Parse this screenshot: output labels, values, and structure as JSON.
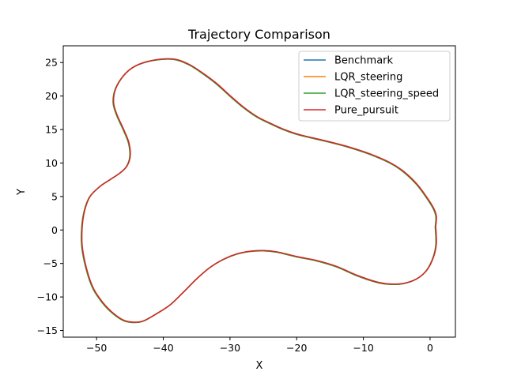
{
  "chart_data": {
    "type": "line",
    "title": "Trajectory Comparison",
    "xlabel": "X",
    "ylabel": "Y",
    "xlim": [
      -55,
      3.8
    ],
    "ylim": [
      -16,
      27.5
    ],
    "xticks": [
      -50,
      -40,
      -30,
      -20,
      -10,
      0
    ],
    "yticks": [
      -15,
      -10,
      -5,
      0,
      5,
      10,
      15,
      20,
      25
    ],
    "grid": false,
    "legend_position": "top-right",
    "path": [
      [
        0.8,
        0.5
      ],
      [
        0.9,
        -2
      ],
      [
        0.5,
        -4
      ],
      [
        -0.5,
        -6
      ],
      [
        -2,
        -7.3
      ],
      [
        -4,
        -8
      ],
      [
        -6,
        -8.1
      ],
      [
        -8,
        -7.8
      ],
      [
        -11,
        -6.8
      ],
      [
        -14,
        -5.5
      ],
      [
        -17,
        -4.6
      ],
      [
        -20,
        -4
      ],
      [
        -23,
        -3.3
      ],
      [
        -25,
        -3.1
      ],
      [
        -27,
        -3.2
      ],
      [
        -29,
        -3.6
      ],
      [
        -31,
        -4.4
      ],
      [
        -33,
        -5.6
      ],
      [
        -35,
        -7.3
      ],
      [
        -37,
        -9.3
      ],
      [
        -39,
        -11.2
      ],
      [
        -41,
        -12.5
      ],
      [
        -43,
        -13.6
      ],
      [
        -44.5,
        -13.8
      ],
      [
        -46,
        -13.5
      ],
      [
        -47.5,
        -12.5
      ],
      [
        -49,
        -11
      ],
      [
        -50.5,
        -8.8
      ],
      [
        -51.5,
        -6
      ],
      [
        -52.2,
        -2.5
      ],
      [
        -52.2,
        0.5
      ],
      [
        -51.8,
        3
      ],
      [
        -51,
        5
      ],
      [
        -49.5,
        6.5
      ],
      [
        -48,
        7.5
      ],
      [
        -46.5,
        8.5
      ],
      [
        -45.5,
        9.5
      ],
      [
        -45,
        11
      ],
      [
        -45.2,
        13
      ],
      [
        -46,
        15
      ],
      [
        -47,
        17.2
      ],
      [
        -47.5,
        19
      ],
      [
        -47.2,
        21
      ],
      [
        -46,
        23
      ],
      [
        -44.5,
        24.3
      ],
      [
        -42.5,
        25.1
      ],
      [
        -40,
        25.5
      ],
      [
        -38,
        25.4
      ],
      [
        -36,
        24.6
      ],
      [
        -34,
        23.3
      ],
      [
        -32,
        21.8
      ],
      [
        -30,
        20
      ],
      [
        -28,
        18.3
      ],
      [
        -26,
        16.9
      ],
      [
        -24,
        15.9
      ],
      [
        -22,
        15
      ],
      [
        -20,
        14.3
      ],
      [
        -18,
        13.8
      ],
      [
        -15,
        13.1
      ],
      [
        -12,
        12.3
      ],
      [
        -9,
        11.3
      ],
      [
        -6,
        10
      ],
      [
        -4,
        8.7
      ],
      [
        -2,
        6.8
      ],
      [
        -0.5,
        4.8
      ],
      [
        0.5,
        3.2
      ],
      [
        0.9,
        2
      ],
      [
        0.8,
        0.5
      ]
    ],
    "series": [
      {
        "name": "Benchmark",
        "color": "#1f77b4",
        "offset": [
          0,
          0
        ]
      },
      {
        "name": "LQR_steering",
        "color": "#ff7f0e",
        "offset": [
          0.03,
          0.02
        ]
      },
      {
        "name": "LQR_steering_speed",
        "color": "#2ca02c",
        "offset": [
          -0.03,
          -0.02
        ]
      },
      {
        "name": "Pure_pursuit",
        "color": "#d62728",
        "offset": [
          0.05,
          0.04
        ]
      }
    ]
  }
}
